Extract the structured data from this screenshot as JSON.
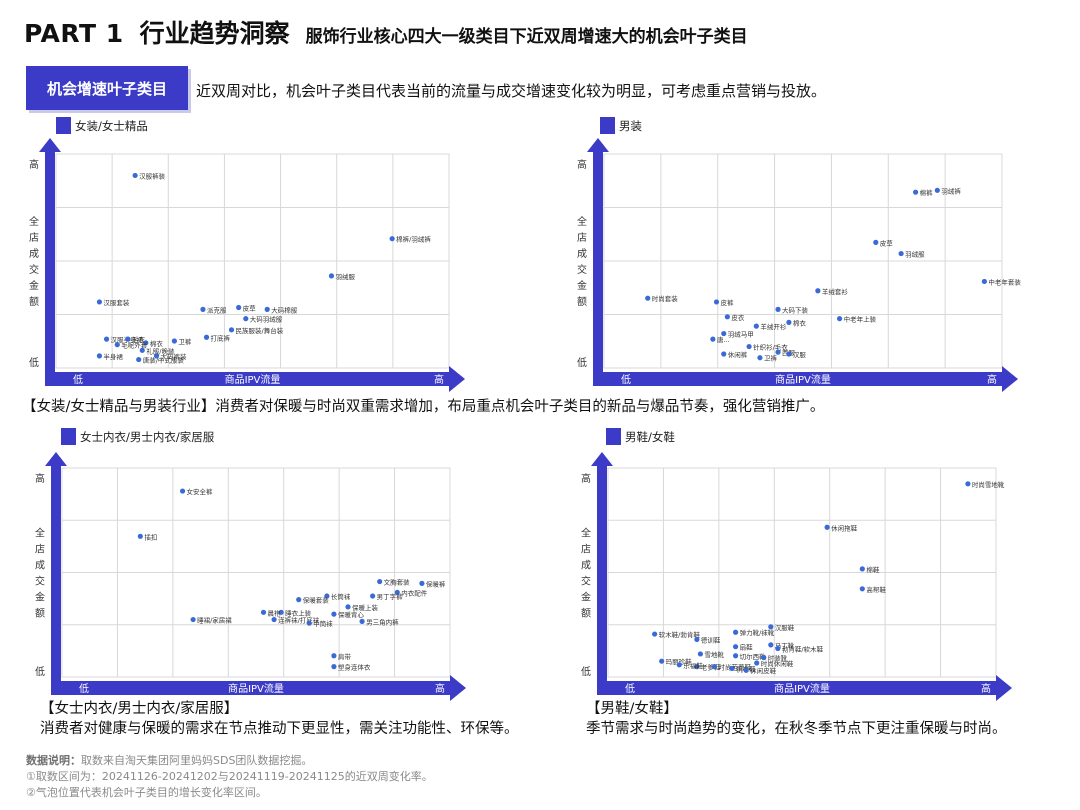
{
  "header": {
    "part": "PART 1",
    "title": "行业趋势洞察",
    "subtitle": "服饰行业核心四大一级类目下近双周增速大的机会叶子类目"
  },
  "banner": {
    "label": "机会增速叶子类目"
  },
  "intro": "近双周对比，机会叶子类目代表当前的流量与成交增速变化较为明显，可考虑重点营销与投放。",
  "notes": {
    "top": "【女装/女士精品与男装行业】消费者对保暖与时尚双重需求增加，布局重点机会叶子类目的新品与爆品节奏，强化营销推广。",
    "bottom_left_title": "【女士内衣/男士内衣/家居服】",
    "bottom_left_body": "消费者对健康与保暖的需求在节点推动下更显性，需关注功能性、环保等。",
    "bottom_right_title": "【男鞋/女鞋】",
    "bottom_right_body": "季节需求与时尚趋势的变化，在秋冬季节点下更注重保暖与时尚。"
  },
  "footnotes": {
    "label": "数据说明：",
    "line1": "取数来自淘天集团阿里妈妈SDS团队数据挖掘。",
    "line2": "①取数区间为：20241126-20241202与20241119-20241125的近双周变化率。",
    "line3": "②气泡位置代表机会叶子类目的增长变化率区间。"
  },
  "colors": {
    "accent": "#3b3bc7",
    "point": "#3a6ad6",
    "grid": "#d8d8d8"
  },
  "chart_data": [
    {
      "type": "scatter",
      "legend": "女装/女士精品",
      "xlabel": "商品IPV流量",
      "ylabel": "全店成交金额",
      "x_low": "低",
      "x_high": "高",
      "y_low": "低",
      "y_high": "高",
      "xlim": [
        0,
        100
      ],
      "ylim": [
        0,
        100
      ],
      "grid": true,
      "points": [
        {
          "label": "汉服裤装",
          "x": 16,
          "y": 96
        },
        {
          "label": "棉裤/羽绒裤",
          "x": 88,
          "y": 62
        },
        {
          "label": "羽绒服",
          "x": 71,
          "y": 42
        },
        {
          "label": "汉服套装",
          "x": 6,
          "y": 28
        },
        {
          "label": "皮草",
          "x": 45,
          "y": 25
        },
        {
          "label": "派克服",
          "x": 35,
          "y": 24
        },
        {
          "label": "大码棉服",
          "x": 53,
          "y": 24
        },
        {
          "label": "大码羽绒服",
          "x": 47,
          "y": 19
        },
        {
          "label": "民族服装/舞台装",
          "x": 43,
          "y": 13
        },
        {
          "label": "打底裤",
          "x": 36,
          "y": 9
        },
        {
          "label": "卫裤",
          "x": 27,
          "y": 7
        },
        {
          "label": "汉服半身裙",
          "x": 8,
          "y": 8
        },
        {
          "label": "毛衣",
          "x": 14,
          "y": 8
        },
        {
          "label": "棉衣",
          "x": 19,
          "y": 6
        },
        {
          "label": "毛呢外套",
          "x": 11,
          "y": 5
        },
        {
          "label": "礼服/晚装",
          "x": 18,
          "y": 2
        },
        {
          "label": "半身裙",
          "x": 6,
          "y": -1
        },
        {
          "label": "大码裤装",
          "x": 22,
          "y": -1
        },
        {
          "label": "唐装/中式服装",
          "x": 17,
          "y": -3
        }
      ]
    },
    {
      "type": "scatter",
      "legend": "男装",
      "xlabel": "商品IPV流量",
      "ylabel": "全店成交金额",
      "x_low": "低",
      "x_high": "高",
      "y_low": "低",
      "y_high": "高",
      "xlim": [
        0,
        100
      ],
      "ylim": [
        0,
        100
      ],
      "grid": true,
      "points": [
        {
          "label": "棉裤",
          "x": 80,
          "y": 87
        },
        {
          "label": "羽绒裤",
          "x": 86,
          "y": 88
        },
        {
          "label": "皮草",
          "x": 69,
          "y": 60
        },
        {
          "label": "羽绒服",
          "x": 76,
          "y": 54
        },
        {
          "label": "中老年套装",
          "x": 99,
          "y": 39
        },
        {
          "label": "时尚套装",
          "x": 6,
          "y": 30
        },
        {
          "label": "皮裤",
          "x": 25,
          "y": 28
        },
        {
          "label": "羊绒套衫",
          "x": 53,
          "y": 34
        },
        {
          "label": "大码下装",
          "x": 42,
          "y": 24
        },
        {
          "label": "中老年上装",
          "x": 59,
          "y": 19
        },
        {
          "label": "皮衣",
          "x": 28,
          "y": 20
        },
        {
          "label": "羊绒开衫",
          "x": 36,
          "y": 15
        },
        {
          "label": "棉衣",
          "x": 45,
          "y": 17
        },
        {
          "label": "羽绒马甲",
          "x": 27,
          "y": 11
        },
        {
          "label": "唐...",
          "x": 24,
          "y": 8
        },
        {
          "label": "针织衫/毛衣",
          "x": 34,
          "y": 4
        },
        {
          "label": "西服",
          "x": 42,
          "y": 1
        },
        {
          "label": "休闲裤",
          "x": 27,
          "y": 0
        },
        {
          "label": "卫裤",
          "x": 37,
          "y": -2
        },
        {
          "label": "汉服",
          "x": 45,
          "y": 0
        }
      ]
    },
    {
      "type": "scatter",
      "legend": "女士内衣/男士内衣/家居服",
      "xlabel": "商品IPV流量",
      "ylabel": "全店成交金额",
      "x_low": "低",
      "x_high": "高",
      "y_low": "低",
      "y_high": "高",
      "xlim": [
        0,
        100
      ],
      "ylim": [
        0,
        100
      ],
      "grid": true,
      "points": [
        {
          "label": "女安全裤",
          "x": 28,
          "y": 95
        },
        {
          "label": "插扣",
          "x": 16,
          "y": 70
        },
        {
          "label": "文胸套装",
          "x": 84,
          "y": 45
        },
        {
          "label": "保暖裤",
          "x": 96,
          "y": 44
        },
        {
          "label": "内衣配件",
          "x": 89,
          "y": 39
        },
        {
          "label": "男丁字裤",
          "x": 82,
          "y": 37
        },
        {
          "label": "长筒袜",
          "x": 69,
          "y": 37
        },
        {
          "label": "保暖套装",
          "x": 61,
          "y": 35
        },
        {
          "label": "保暖上装",
          "x": 75,
          "y": 31
        },
        {
          "label": "睡衣上装",
          "x": 56,
          "y": 28
        },
        {
          "label": "晨袍",
          "x": 51,
          "y": 28
        },
        {
          "label": "保暖背心",
          "x": 71,
          "y": 27
        },
        {
          "label": "睡裙/家居裙",
          "x": 31,
          "y": 24
        },
        {
          "label": "连裤袜/打底袜",
          "x": 54,
          "y": 24
        },
        {
          "label": "男三角内裤",
          "x": 79,
          "y": 23
        },
        {
          "label": "中筒袜",
          "x": 64,
          "y": 22
        },
        {
          "label": "肩带",
          "x": 71,
          "y": 4
        },
        {
          "label": "塑身连体衣",
          "x": 71,
          "y": -2
        }
      ]
    },
    {
      "type": "scatter",
      "legend": "男鞋/女鞋",
      "xlabel": "商品IPV流量",
      "ylabel": "全店成交金额",
      "x_low": "低",
      "x_high": "高",
      "y_low": "低",
      "y_high": "高",
      "xlim": [
        0,
        100
      ],
      "ylim": [
        0,
        100
      ],
      "grid": true,
      "points": [
        {
          "label": "时尚雪地靴",
          "x": 96,
          "y": 99
        },
        {
          "label": "休闲拖鞋",
          "x": 56,
          "y": 75
        },
        {
          "label": "棉鞋",
          "x": 66,
          "y": 52
        },
        {
          "label": "高帮鞋",
          "x": 66,
          "y": 41
        },
        {
          "label": "汉服鞋",
          "x": 40,
          "y": 20
        },
        {
          "label": "软木鞋/勃肯鞋",
          "x": 7,
          "y": 16
        },
        {
          "label": "弹力靴/袜靴",
          "x": 30,
          "y": 17
        },
        {
          "label": "德训鞋",
          "x": 19,
          "y": 13
        },
        {
          "label": "马丁靴",
          "x": 40,
          "y": 10
        },
        {
          "label": "勃肯鞋/软木鞋",
          "x": 42,
          "y": 8
        },
        {
          "label": "扇鞋",
          "x": 30,
          "y": 9
        },
        {
          "label": "雪地靴",
          "x": 20,
          "y": 5
        },
        {
          "label": "切尔西靴",
          "x": 30,
          "y": 4
        },
        {
          "label": "时装靴",
          "x": 38,
          "y": 3
        },
        {
          "label": "玛丽珍鞋",
          "x": 9,
          "y": 1
        },
        {
          "label": "时尚休闲鞋",
          "x": 36,
          "y": 0
        },
        {
          "label": "老爹鞋",
          "x": 19,
          "y": -2
        },
        {
          "label": "时尚芭蕾鞋",
          "x": 24,
          "y": -2
        },
        {
          "label": "帆布鞋",
          "x": 29,
          "y": -3
        },
        {
          "label": "乐福鞋",
          "x": 14,
          "y": -1
        },
        {
          "label": "休闲皮鞋",
          "x": 33,
          "y": -4
        }
      ]
    }
  ]
}
